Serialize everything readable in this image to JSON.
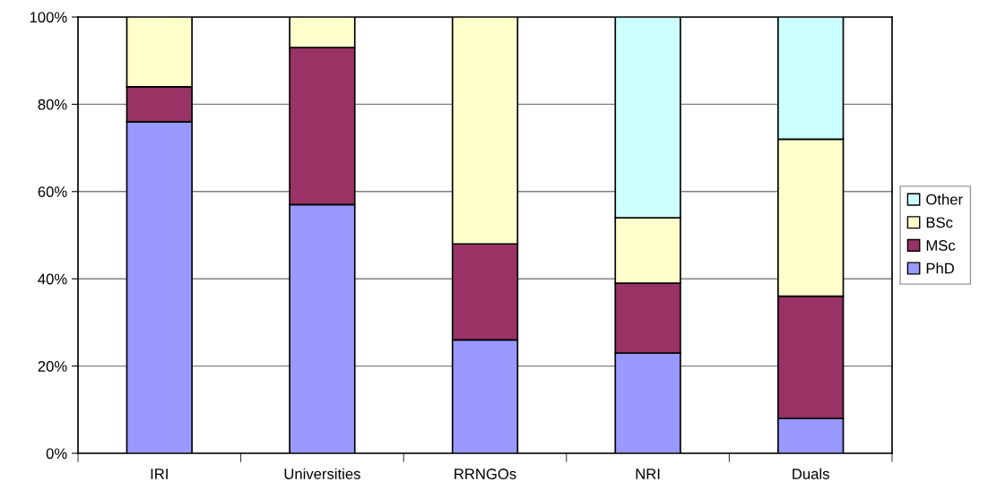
{
  "chart_data": {
    "type": "bar",
    "stacked": true,
    "categories": [
      "IRI",
      "Universities",
      "RRNGOs",
      "NRI",
      "Duals"
    ],
    "series": [
      {
        "name": "PhD",
        "color": "#9999ff",
        "values": [
          76,
          57,
          26,
          23,
          8
        ]
      },
      {
        "name": "MSc",
        "color": "#993366",
        "values": [
          8,
          36,
          22,
          16,
          28
        ]
      },
      {
        "name": "BSc",
        "color": "#ffffcc",
        "values": [
          16,
          7,
          52,
          15,
          36
        ]
      },
      {
        "name": "Other",
        "color": "#ccffff",
        "values": [
          null,
          null,
          null,
          46,
          28
        ]
      }
    ],
    "ylim": [
      0,
      100
    ],
    "yticks": [
      {
        "value": 0,
        "label": "0%"
      },
      {
        "value": 20,
        "label": "20%"
      },
      {
        "value": 40,
        "label": "40%"
      },
      {
        "value": 60,
        "label": "60%"
      },
      {
        "value": 80,
        "label": "80%"
      },
      {
        "value": 100,
        "label": "100%"
      }
    ],
    "grid": "y",
    "legend": "right"
  }
}
